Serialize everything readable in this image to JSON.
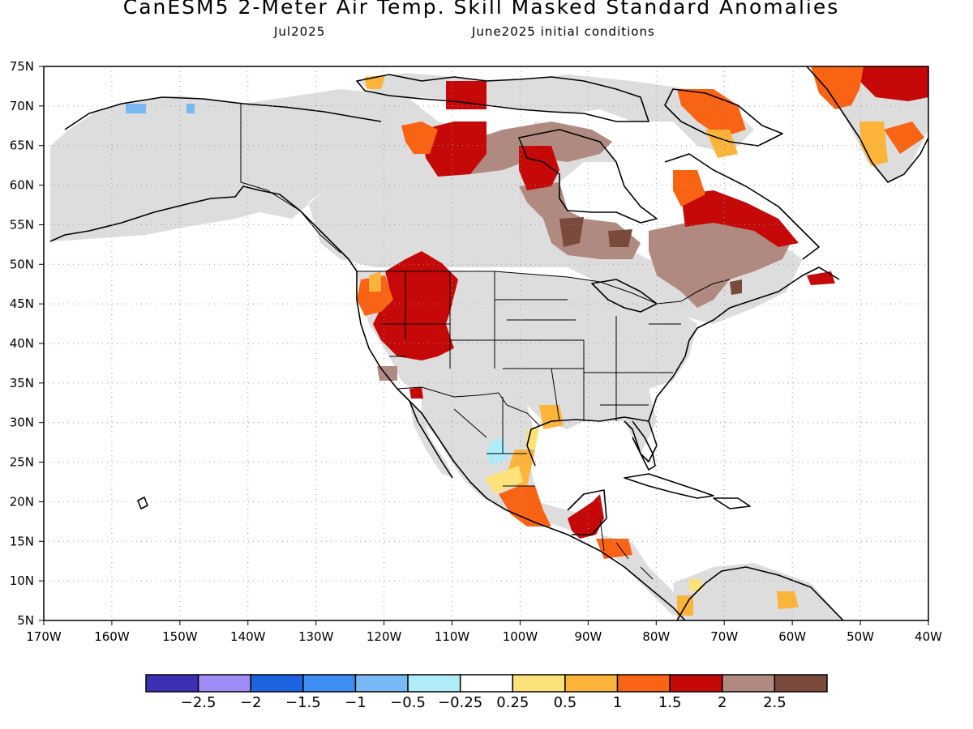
{
  "header": {
    "title": "CanESM5 2-Meter Air Temp. Skill Masked Standard Anomalies",
    "valid_month": "Jul2025",
    "init_label": "June2025 initial conditions"
  },
  "axes": {
    "lat_labels": [
      "75N",
      "70N",
      "65N",
      "60N",
      "55N",
      "50N",
      "45N",
      "40N",
      "35N",
      "30N",
      "25N",
      "20N",
      "15N",
      "10N",
      "5N"
    ],
    "lat_values": [
      75,
      70,
      65,
      60,
      55,
      50,
      45,
      40,
      35,
      30,
      25,
      20,
      15,
      10,
      5
    ],
    "lon_labels": [
      "170W",
      "160W",
      "150W",
      "140W",
      "130W",
      "120W",
      "110W",
      "100W",
      "90W",
      "80W",
      "70W",
      "60W",
      "50W",
      "40W"
    ],
    "lon_values": [
      -170,
      -160,
      -150,
      -140,
      -130,
      -120,
      -110,
      -100,
      -90,
      -80,
      -70,
      -60,
      -50,
      -40
    ],
    "lon_range": [
      -170,
      -40
    ],
    "lat_range": [
      5,
      75
    ],
    "grid": "dotted"
  },
  "colorbar": {
    "colors": [
      "#3c2fb3",
      "#a08cf7",
      "#1e64e0",
      "#3d8ef0",
      "#78b8f5",
      "#b0ecf8",
      "#ffffff",
      "#fde27a",
      "#fcb43a",
      "#f96414",
      "#c50808",
      "#b08a80",
      "#7a4a3c"
    ],
    "labels": [
      "-2.5",
      "-2",
      "-1.5",
      "-1",
      "-0.5",
      "-0.25",
      "0.25",
      "0.5",
      "1",
      "1.5",
      "2",
      "2.5"
    ]
  },
  "map_colors": {
    "neutral": "#dddddd",
    "land_outline": "#000000"
  }
}
